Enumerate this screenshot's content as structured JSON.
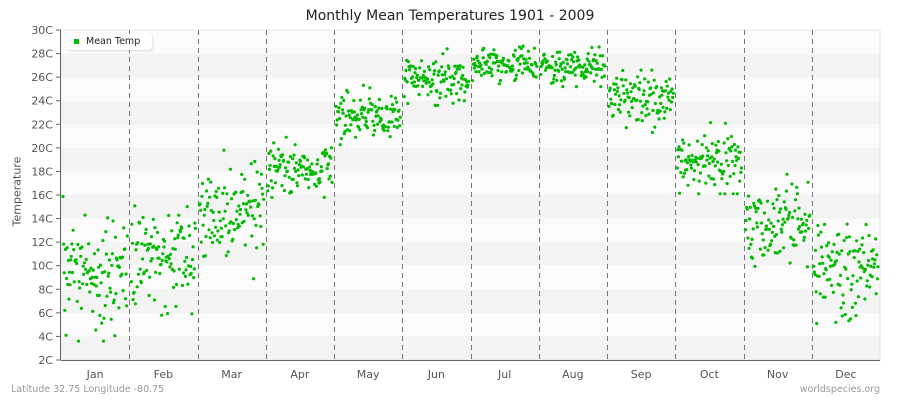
{
  "title": "Monthly Mean Temperatures 1901 - 2009",
  "footer": {
    "location": "Latitude 32.75 Longitude -80.75",
    "source": "worldspecies.org"
  },
  "colors": {
    "point": "#00bb00",
    "band_light": "#fbfbfb",
    "band_dark": "#f3f3f3",
    "divider": "#777777",
    "axis": "#666666"
  },
  "chart_data": {
    "type": "scatter",
    "title": "Monthly Mean Temperatures 1901 - 2009",
    "xlabel": "",
    "ylabel": "Temperature",
    "ylim": [
      2,
      30
    ],
    "yticks": [
      "2C",
      "4C",
      "6C",
      "8C",
      "10C",
      "12C",
      "14C",
      "16C",
      "18C",
      "20C",
      "22C",
      "24C",
      "26C",
      "28C",
      "30C"
    ],
    "categories": [
      "Jan",
      "Feb",
      "Mar",
      "Apr",
      "May",
      "Jun",
      "Jul",
      "Aug",
      "Sep",
      "Oct",
      "Nov",
      "Dec"
    ],
    "legend": [
      "Mean Temp"
    ],
    "legend_position": "top-left",
    "grid": "horizontal bands, dashed vertical month separators",
    "points_per_month": 109,
    "series": [
      {
        "name": "Mean Temp",
        "monthly_summary": [
          {
            "month": "Jan",
            "mean": 9.3,
            "min": 3.6,
            "max": 16.4,
            "sd": 2.4
          },
          {
            "month": "Feb",
            "mean": 10.6,
            "min": 5.8,
            "max": 15.6,
            "sd": 2.0
          },
          {
            "month": "Mar",
            "mean": 14.5,
            "min": 8.4,
            "max": 19.8,
            "sd": 2.0
          },
          {
            "month": "Apr",
            "mean": 18.3,
            "min": 15.8,
            "max": 20.9,
            "sd": 1.0
          },
          {
            "month": "May",
            "mean": 22.6,
            "min": 19.6,
            "max": 25.3,
            "sd": 1.1
          },
          {
            "month": "Jun",
            "mean": 25.8,
            "min": 23.6,
            "max": 28.4,
            "sd": 0.9
          },
          {
            "month": "Jul",
            "mean": 27.1,
            "min": 25.4,
            "max": 29.5,
            "sd": 0.7
          },
          {
            "month": "Aug",
            "mean": 26.8,
            "min": 25.2,
            "max": 28.6,
            "sd": 0.7
          },
          {
            "month": "Sep",
            "mean": 24.3,
            "min": 21.3,
            "max": 26.6,
            "sd": 1.0
          },
          {
            "month": "Oct",
            "mean": 18.9,
            "min": 16.1,
            "max": 22.3,
            "sd": 1.3
          },
          {
            "month": "Nov",
            "mean": 13.8,
            "min": 9.9,
            "max": 19.0,
            "sd": 1.6
          },
          {
            "month": "Dec",
            "mean": 9.7,
            "min": 5.1,
            "max": 15.2,
            "sd": 2.1
          }
        ]
      }
    ]
  }
}
